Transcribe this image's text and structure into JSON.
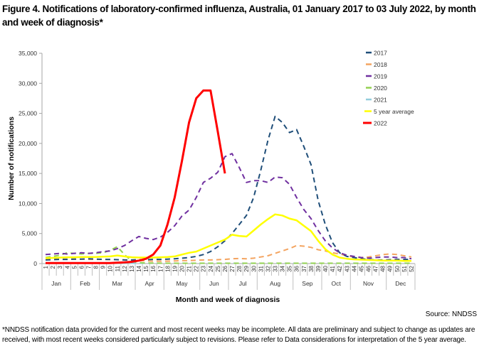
{
  "figure": {
    "title": "Figure 4. Notifications of laboratory-confirmed influenza, Australia, 01 January 2017 to 03 July 2022, by month and week of diagnosis*",
    "source": "Source: NNDSS",
    "footnote": "*NNDSS notification data provided for the current and most recent weeks may be incomplete. All data are preliminary and subject to change as updates are received, with most recent weeks considered particularly subject to revisions. Please refer to Data considerations for interpretation of the 5 year average."
  },
  "chart_data": {
    "type": "line",
    "title": "Figure 4. Notifications of laboratory-confirmed influenza, Australia, 01 January 2017 to 03 July 2022, by month and week of diagnosis*",
    "xlabel": "Month and week of diagnosis",
    "ylabel": "Number of notifications",
    "ylim": [
      0,
      35000
    ],
    "yticks": [
      0,
      5000,
      10000,
      15000,
      20000,
      25000,
      30000,
      35000
    ],
    "ytick_labels": [
      "0",
      "5,000",
      "10,000",
      "15,000",
      "20,000",
      "25,000",
      "30,000",
      "35,000"
    ],
    "x": [
      1,
      2,
      3,
      4,
      5,
      6,
      7,
      8,
      9,
      10,
      11,
      12,
      13,
      14,
      15,
      16,
      17,
      18,
      19,
      20,
      21,
      22,
      23,
      24,
      25,
      26,
      27,
      28,
      29,
      30,
      31,
      32,
      33,
      34,
      35,
      36,
      37,
      38,
      39,
      40,
      41,
      42,
      43,
      44,
      45,
      46,
      47,
      48,
      49,
      50,
      51,
      52
    ],
    "months": [
      {
        "label": "Jan",
        "start": 1,
        "end": 4
      },
      {
        "label": "Feb",
        "start": 5,
        "end": 8
      },
      {
        "label": "Mar",
        "start": 9,
        "end": 13
      },
      {
        "label": "Apr",
        "start": 14,
        "end": 17
      },
      {
        "label": "May",
        "start": 18,
        "end": 22
      },
      {
        "label": "Jun",
        "start": 23,
        "end": 26
      },
      {
        "label": "Jul",
        "start": 27,
        "end": 30
      },
      {
        "label": "Aug",
        "start": 31,
        "end": 35
      },
      {
        "label": "Sep",
        "start": 36,
        "end": 39
      },
      {
        "label": "Oct",
        "start": 40,
        "end": 43
      },
      {
        "label": "Nov",
        "start": 44,
        "end": 48
      },
      {
        "label": "Dec",
        "start": 49,
        "end": 52
      }
    ],
    "grid": false,
    "legend_position": "top-right",
    "series": [
      {
        "name": "2017",
        "color": "#1f4e79",
        "dash": true,
        "values": [
          600,
          650,
          700,
          700,
          750,
          750,
          800,
          750,
          700,
          700,
          650,
          600,
          600,
          650,
          650,
          700,
          700,
          750,
          800,
          900,
          1000,
          1200,
          1500,
          2000,
          2800,
          3800,
          5000,
          6500,
          8000,
          11000,
          15500,
          20500,
          24500,
          23500,
          21800,
          22300,
          19500,
          16500,
          10500,
          6500,
          3500,
          1800,
          1200,
          1000,
          800,
          700,
          600,
          600,
          650,
          700,
          700,
          700
        ]
      },
      {
        "name": "2018",
        "color": "#f4a460",
        "dash": true,
        "values": [
          700,
          700,
          750,
          750,
          750,
          750,
          700,
          700,
          700,
          650,
          650,
          600,
          550,
          500,
          450,
          400,
          400,
          400,
          450,
          500,
          500,
          550,
          600,
          600,
          650,
          700,
          800,
          850,
          800,
          900,
          1100,
          1300,
          1700,
          2100,
          2500,
          3000,
          2900,
          2700,
          2300,
          2100,
          1800,
          1600,
          1300,
          1100,
          1000,
          1100,
          1300,
          1500,
          1600,
          1500,
          1300,
          1100
        ]
      },
      {
        "name": "2019",
        "color": "#7030a0",
        "dash": true,
        "values": [
          1500,
          1600,
          1700,
          1600,
          1700,
          1800,
          1700,
          1800,
          2000,
          2100,
          2500,
          3000,
          3800,
          4500,
          4200,
          4000,
          4400,
          5200,
          6300,
          7900,
          8900,
          11000,
          13500,
          14200,
          15200,
          17800,
          18300,
          16000,
          13500,
          13800,
          13800,
          13500,
          14400,
          14300,
          13200,
          11000,
          9000,
          7500,
          5500,
          3800,
          2600,
          1800,
          1400,
          1200,
          1000,
          900,
          1000,
          1100,
          1100,
          1000,
          1000,
          800
        ]
      },
      {
        "name": "2020",
        "color": "#92d050",
        "dash": true,
        "values": [
          1000,
          1200,
          1400,
          1800,
          1700,
          1600,
          1700,
          1700,
          1800,
          2200,
          2800,
          1500,
          400,
          150,
          100,
          80,
          70,
          60,
          60,
          60,
          60,
          60,
          60,
          60,
          60,
          60,
          60,
          60,
          60,
          60,
          60,
          60,
          60,
          60,
          60,
          60,
          60,
          60,
          60,
          60,
          60,
          60,
          60,
          60,
          60,
          60,
          60,
          60,
          60,
          60,
          60,
          60
        ]
      },
      {
        "name": "2021",
        "color": "#92cddc",
        "dash": true,
        "values": [
          60,
          60,
          60,
          60,
          60,
          60,
          60,
          60,
          60,
          60,
          60,
          60,
          60,
          60,
          60,
          60,
          60,
          60,
          60,
          60,
          60,
          60,
          60,
          60,
          60,
          60,
          60,
          60,
          60,
          60,
          60,
          60,
          60,
          60,
          60,
          60,
          60,
          60,
          60,
          60,
          60,
          60,
          60,
          60,
          60,
          60,
          60,
          60,
          60,
          60,
          60,
          60
        ]
      },
      {
        "name": "5 year average",
        "color": "#ffff00",
        "dash": false,
        "values": [
          900,
          950,
          1000,
          1050,
          1050,
          1100,
          1100,
          1100,
          1150,
          1200,
          1350,
          1200,
          1050,
          1000,
          1000,
          1000,
          1050,
          1100,
          1200,
          1500,
          1800,
          2000,
          2500,
          3000,
          3500,
          4000,
          4800,
          4600,
          4500,
          5500,
          6500,
          7400,
          8200,
          8000,
          7500,
          7200,
          6300,
          5400,
          3800,
          2400,
          1500,
          1000,
          800,
          700,
          650,
          600,
          550,
          500,
          500,
          500,
          450,
          450
        ]
      },
      {
        "name": "2022",
        "color": "#ff0000",
        "dash": false,
        "values": [
          100,
          100,
          100,
          100,
          100,
          100,
          100,
          100,
          100,
          100,
          150,
          200,
          300,
          500,
          800,
          1500,
          3000,
          6500,
          11000,
          17000,
          23500,
          27500,
          28800,
          28800,
          22000,
          15000
        ]
      }
    ]
  }
}
